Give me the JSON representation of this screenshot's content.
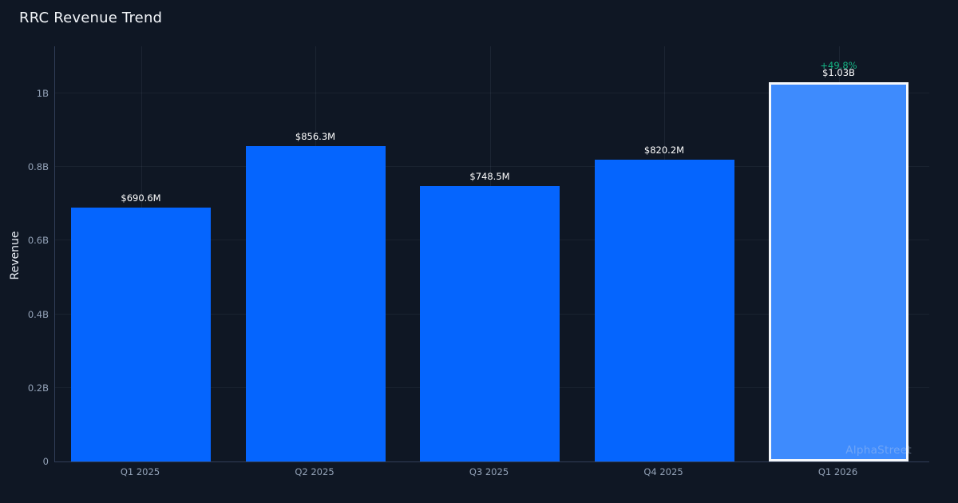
{
  "title": "RRC Revenue Trend",
  "watermark": "AlphaStreet",
  "colors": {
    "background": "#0f1724",
    "bar": "#0565fe",
    "bar_highlight": "#3e8bfd",
    "highlight_border": "#f5f8fc",
    "value_label": "#ffffff",
    "change_positive": "#14b584",
    "tick_label": "#94a3b8",
    "axis_line": "#313e58"
  },
  "chart_data": {
    "type": "bar",
    "title": "RRC Revenue Trend",
    "xlabel": "",
    "ylabel": "Revenue",
    "categories": [
      "Q1 2025",
      "Q2 2025",
      "Q3 2025",
      "Q4 2025",
      "Q1 2026"
    ],
    "values_billions": [
      0.6906,
      0.8563,
      0.7485,
      0.8202,
      1.03
    ],
    "value_labels": [
      "$690.6M",
      "$856.3M",
      "$748.5M",
      "$820.2M",
      "$1.03B"
    ],
    "change_labels": [
      "",
      "",
      "",
      "",
      "+49.8%"
    ],
    "highlighted_index": 4,
    "y_ticks": [
      {
        "value": 0,
        "label": "0"
      },
      {
        "value": 0.2,
        "label": "0.2B"
      },
      {
        "value": 0.4,
        "label": "0.4B"
      },
      {
        "value": 0.6,
        "label": "0.6B"
      },
      {
        "value": 0.8,
        "label": "0.8B"
      },
      {
        "value": 1.0,
        "label": "1B"
      }
    ],
    "ylim": [
      0,
      1.128
    ],
    "grid": true,
    "legend": false
  }
}
